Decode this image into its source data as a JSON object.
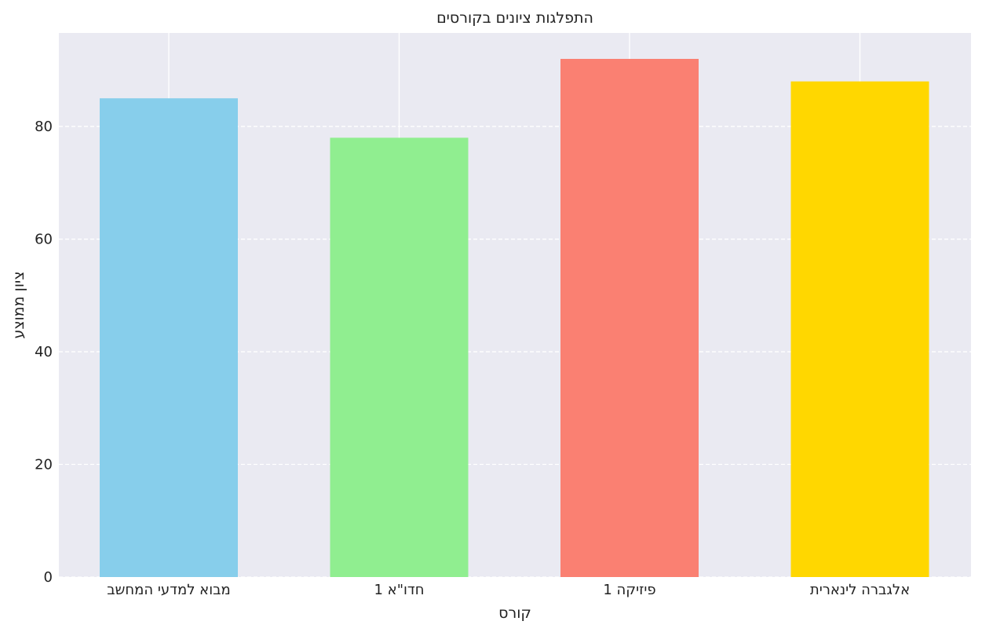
{
  "chart_data": {
    "type": "bar",
    "title": "התפלגות ציונים בקורסים",
    "xlabel": "קורס",
    "ylabel": "ציון ממוצע",
    "categories": [
      "מבוא למדעי המחשב",
      "חדו\"א 1",
      "פיזיקה 1",
      "אלגברה לינארית"
    ],
    "values": [
      85,
      78,
      92,
      88
    ],
    "colors": [
      "#87CEEB",
      "#90EE90",
      "#FA8072",
      "#FFD700"
    ],
    "ylim": [
      0,
      96.6
    ],
    "yticks": [
      0,
      20,
      40,
      60,
      80
    ],
    "grid": {
      "y": "dashed",
      "x": "solid",
      "color": "#ffffff"
    },
    "background": "#EAEAF2",
    "legend": "none"
  }
}
